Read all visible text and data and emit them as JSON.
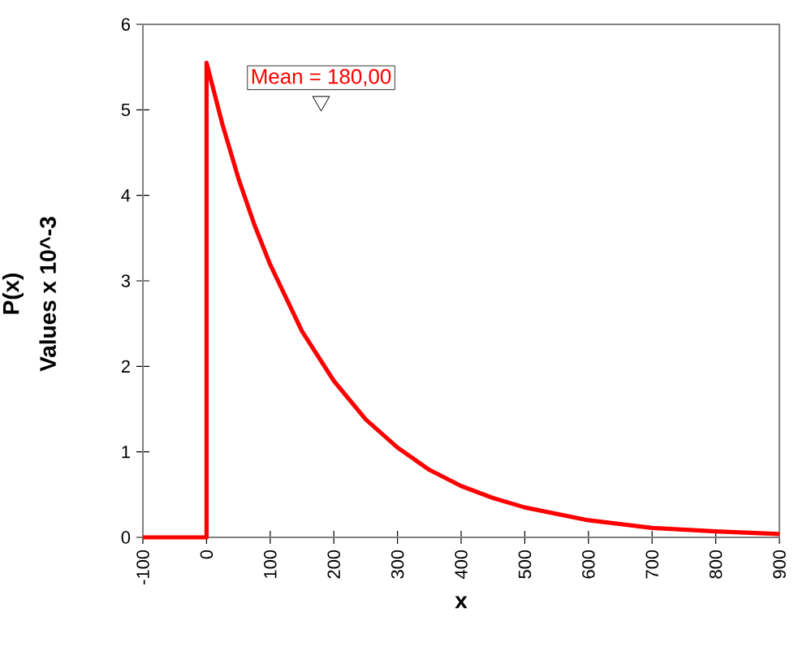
{
  "chart_data": {
    "type": "line",
    "xlabel": "x",
    "ylabel": "P(x)",
    "annotations": [
      "Values x 10^-3",
      {
        "text": "Mean = 180,00",
        "x": 180,
        "y": 5.1
      }
    ],
    "x": [
      -100,
      0,
      0,
      25,
      50,
      75,
      100,
      150,
      200,
      250,
      300,
      350,
      400,
      450,
      500,
      600,
      700,
      800,
      900
    ],
    "series": [
      {
        "color": "#ff0000",
        "values": [
          0,
          0,
          5.55,
          4.83,
          4.2,
          3.66,
          3.19,
          2.41,
          1.83,
          1.38,
          1.05,
          0.79,
          0.6,
          0.46,
          0.35,
          0.2,
          0.11,
          0.07,
          0.04
        ]
      },
      {
        "type": "scatter",
        "x": [
          180
        ],
        "values": [
          5.1
        ],
        "color": "#000000",
        "marker": "triangle"
      }
    ],
    "xlim": [
      -100,
      900
    ],
    "ylim": [
      0,
      6
    ],
    "xticks": [
      -100,
      0,
      100,
      200,
      300,
      400,
      500,
      600,
      700,
      800,
      900
    ],
    "yticks": [
      0,
      1,
      2,
      3,
      4,
      5,
      6
    ],
    "grid": false,
    "marker": "none",
    "line_style": "solid"
  }
}
